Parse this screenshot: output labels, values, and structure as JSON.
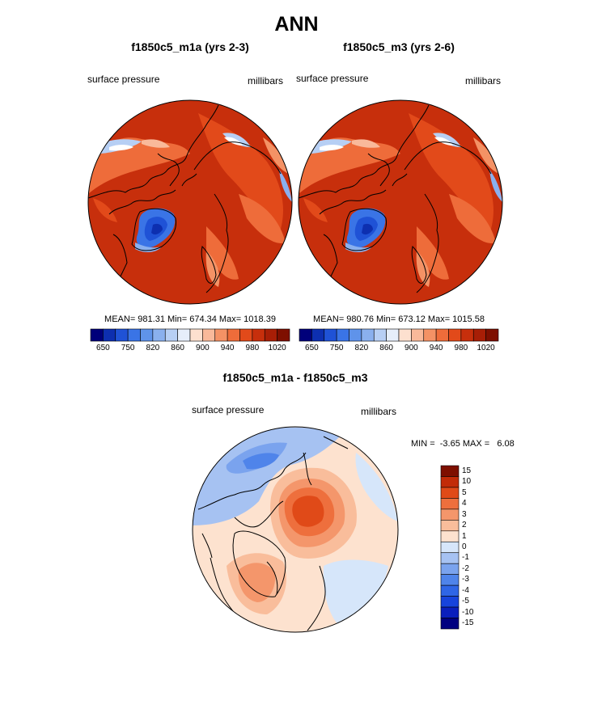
{
  "title": "ANN",
  "colors": {
    "pressure_scale": [
      "#00007a",
      "#0d2fb0",
      "#1f52d6",
      "#3a74e6",
      "#5f93ea",
      "#8ab0ee",
      "#b7cff4",
      "#e6eefa",
      "#fde0cf",
      "#f9b99a",
      "#f49265",
      "#ee6c3a",
      "#e24a1a",
      "#c72f0c",
      "#a81e06",
      "#7e0f00"
    ],
    "diff_scale": [
      "#000080",
      "#0a1fbd",
      "#1744dc",
      "#2f66e6",
      "#4f84ea",
      "#7aa3ee",
      "#a6c2f2",
      "#d6e6fa",
      "#fde2cf",
      "#f9bd9b",
      "#f4966b",
      "#ee6f3d",
      "#e04a18",
      "#c22b08",
      "#7e0f00"
    ],
    "coastline": "#000000"
  },
  "panels": [
    {
      "title": "f1850c5_m1a (yrs 2-3)",
      "left_label": "surface pressure",
      "right_label": "millibars",
      "stats": "MEAN= 981.31  Min= 674.34  Max= 1018.39",
      "colorbar_ticks": [
        "650",
        "750",
        "820",
        "860",
        "900",
        "940",
        "980",
        "1020"
      ]
    },
    {
      "title": "f1850c5_m3 (yrs 2-6)",
      "left_label": "surface pressure",
      "right_label": "millibars",
      "stats": "MEAN= 980.76  Min= 673.12  Max= 1015.58",
      "colorbar_ticks": [
        "650",
        "750",
        "820",
        "860",
        "900",
        "940",
        "980",
        "1020"
      ]
    }
  ],
  "diff_panel": {
    "title": "f1850c5_m1a - f1850c5_m3",
    "left_label": "surface pressure",
    "right_label": "millibars",
    "stats": "MIN =  -3.65 MAX =   6.08",
    "colorbar_ticks": [
      "15",
      "10",
      "5",
      "4",
      "3",
      "2",
      "1",
      "0",
      "-1",
      "-2",
      "-3",
      "-4",
      "-5",
      "-10",
      "-15"
    ]
  }
}
